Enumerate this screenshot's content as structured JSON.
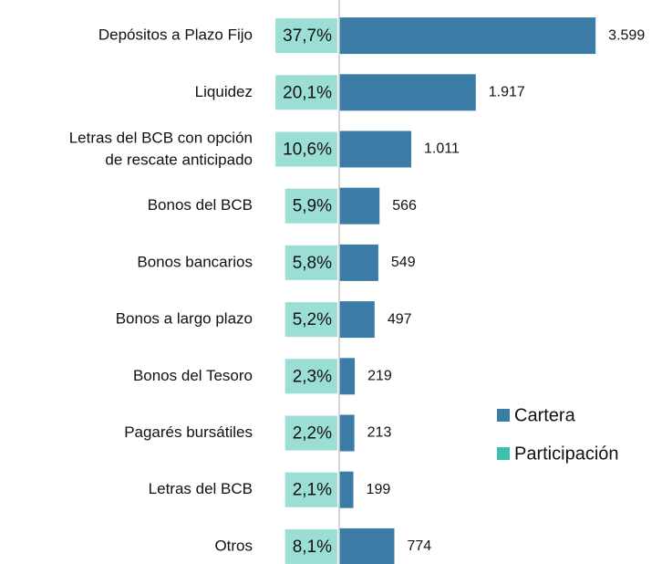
{
  "chart_data": {
    "type": "bar",
    "orientation": "horizontal",
    "categories": [
      "Depósitos a Plazo Fijo",
      "Liquidez",
      "Letras del BCB con opción de rescate anticipado",
      "Bonos del BCB",
      "Bonos bancarios",
      "Bonos a largo plazo",
      "Bonos del Tesoro",
      "Pagarés bursátiles",
      "Letras del BCB",
      "Otros"
    ],
    "series": [
      {
        "name": "Cartera",
        "color": "#3a7ca5",
        "values": [
          3599,
          1917,
          1011,
          566,
          549,
          497,
          219,
          213,
          199,
          774
        ],
        "value_labels": [
          "3.599",
          "1.917",
          "1.011",
          "566",
          "549",
          "497",
          "219",
          "213",
          "199",
          "774"
        ]
      },
      {
        "name": "Participación",
        "color": "#3fbfae",
        "values": [
          37.7,
          20.1,
          10.6,
          5.9,
          5.8,
          5.2,
          2.3,
          2.2,
          2.1,
          8.1
        ],
        "value_labels": [
          "37,7%",
          "20,1%",
          "10,6%",
          "5,9%",
          "5,8%",
          "5,2%",
          "2,3%",
          "2,2%",
          "2,1%",
          "8,1%"
        ]
      }
    ],
    "xlim": [
      0,
      3600
    ],
    "legend": "right"
  }
}
